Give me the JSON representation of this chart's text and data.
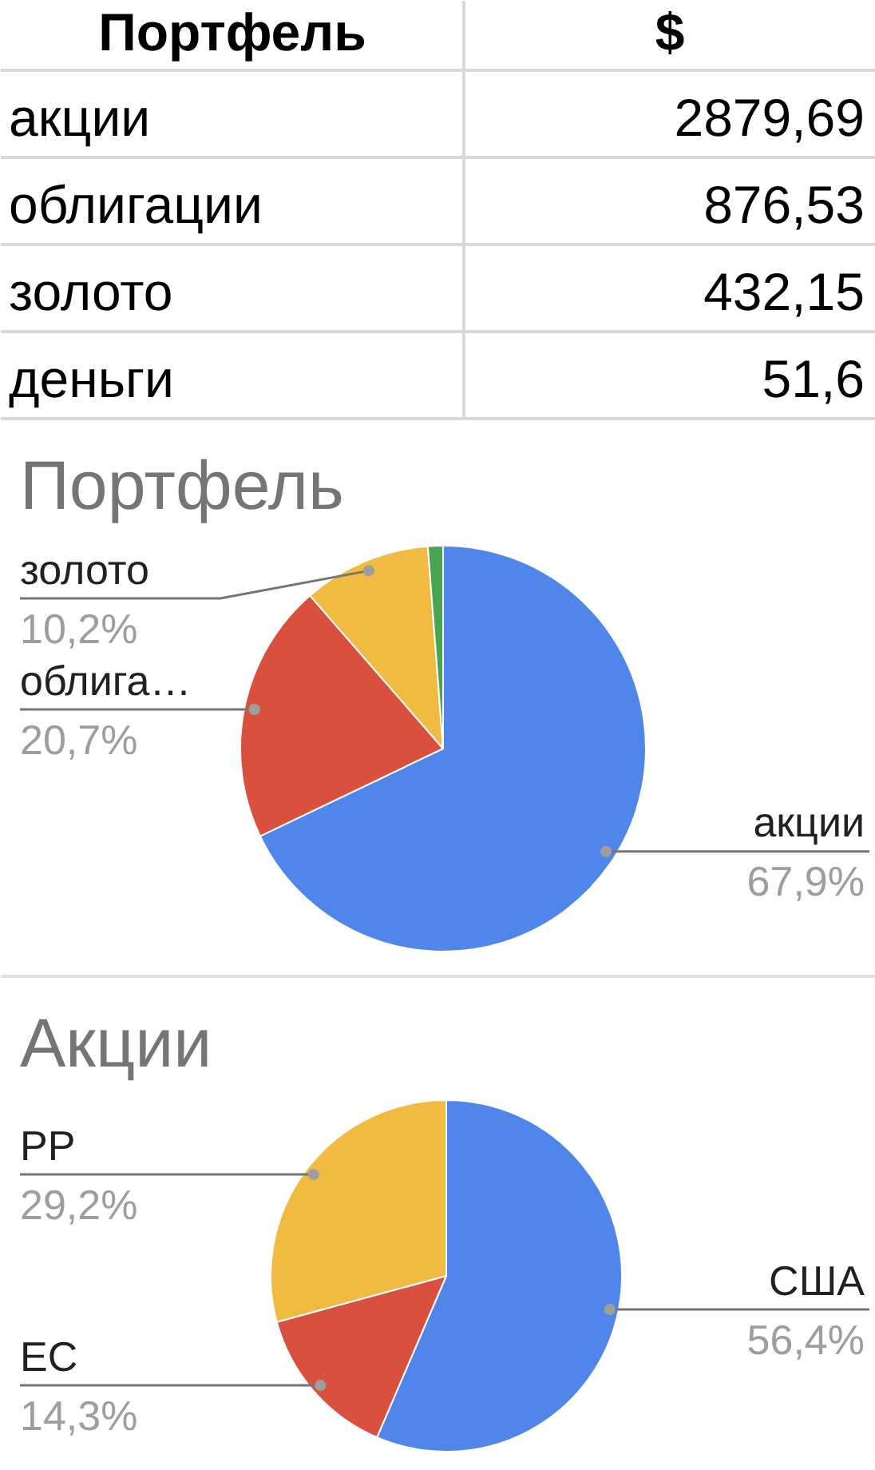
{
  "chart_data": [
    {
      "type": "other",
      "xlabel": "Портфель",
      "ylabel": "$",
      "categories": [
        "акции",
        "облигации",
        "золото",
        "деньги"
      ],
      "values": [
        2879.69,
        876.53,
        432.15,
        51.6
      ],
      "value_labels": [
        "2879,69",
        "876,53",
        "432,15",
        "51,6"
      ]
    },
    {
      "type": "pie",
      "title": "Портфель",
      "categories": [
        "акции",
        "облига…",
        "золото",
        null
      ],
      "values": [
        67.9,
        20.7,
        10.2,
        1.2
      ],
      "colors": [
        "#5086e9",
        "#d9503f",
        "#f1bb41",
        "#4aa552"
      ],
      "value_labels": [
        "67,9%",
        "20,7%",
        "10,2%",
        null
      ]
    },
    {
      "type": "pie",
      "title": "Акции",
      "categories": [
        "США",
        "ЕС",
        "РР"
      ],
      "values": [
        56.4,
        14.3,
        29.2
      ],
      "colors": [
        "#5086e9",
        "#d9503f",
        "#f1bb41"
      ],
      "value_labels": [
        "56,4%",
        "14,3%",
        "29,2%"
      ]
    }
  ]
}
